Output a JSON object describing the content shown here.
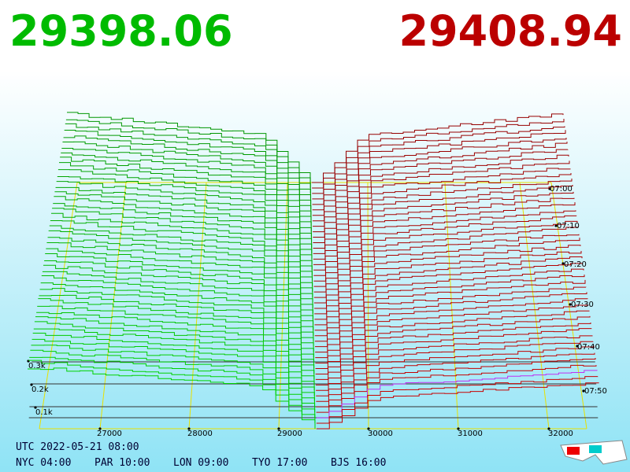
{
  "header": {
    "bid_price": "29398.06",
    "ask_price": "29408.94"
  },
  "price_axis": {
    "labels": [
      "27000",
      "28000",
      "29000",
      "30000",
      "31000",
      "32000"
    ]
  },
  "time_axis": {
    "labels": [
      "07:00",
      "07:10",
      "07:20",
      "07:30",
      "07:40",
      "07:50"
    ]
  },
  "depth_axis": {
    "labels": [
      "0.3k",
      "0.2k",
      "0.1k"
    ]
  },
  "footer": {
    "utc": "UTC 2022-05-21 08:00",
    "zones": [
      "NYC 04:00",
      "PAR 10:00",
      "LON 09:00",
      "TYO 17:00",
      "BJS 16:00"
    ]
  }
}
